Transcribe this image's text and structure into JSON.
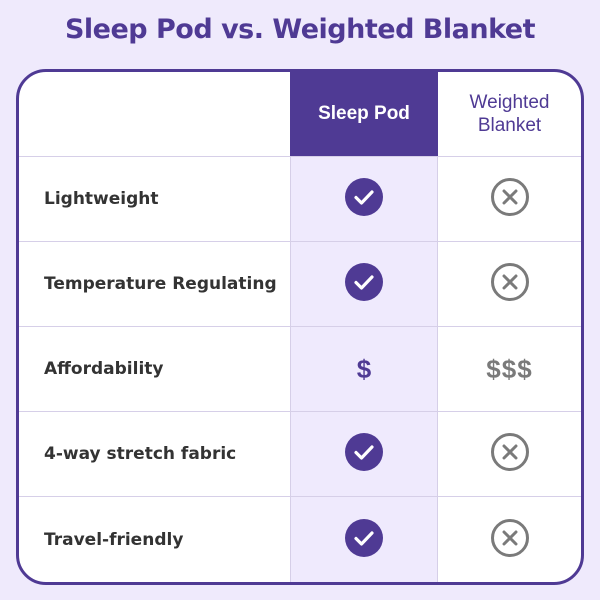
{
  "title": "Sleep Pod vs. Weighted Blanket",
  "columns": [
    "Sleep Pod",
    "Weighted Blanket"
  ],
  "colors": {
    "accent": "#4f3a94",
    "background": "#efeafc",
    "negative": "#7a7a7a"
  },
  "rows": [
    {
      "feature": "Lightweight",
      "sleep_pod": "check-icon",
      "weighted_blanket": "x-circle-icon"
    },
    {
      "feature": "Temperature Regulating",
      "sleep_pod": "check-icon",
      "weighted_blanket": "x-circle-icon"
    },
    {
      "feature": "Affordability",
      "sleep_pod": "$",
      "weighted_blanket": "$$$"
    },
    {
      "feature": "4-way stretch fabric",
      "sleep_pod": "check-icon",
      "weighted_blanket": "x-circle-icon"
    },
    {
      "feature": "Travel-friendly",
      "sleep_pod": "check-icon",
      "weighted_blanket": "x-circle-icon"
    }
  ]
}
